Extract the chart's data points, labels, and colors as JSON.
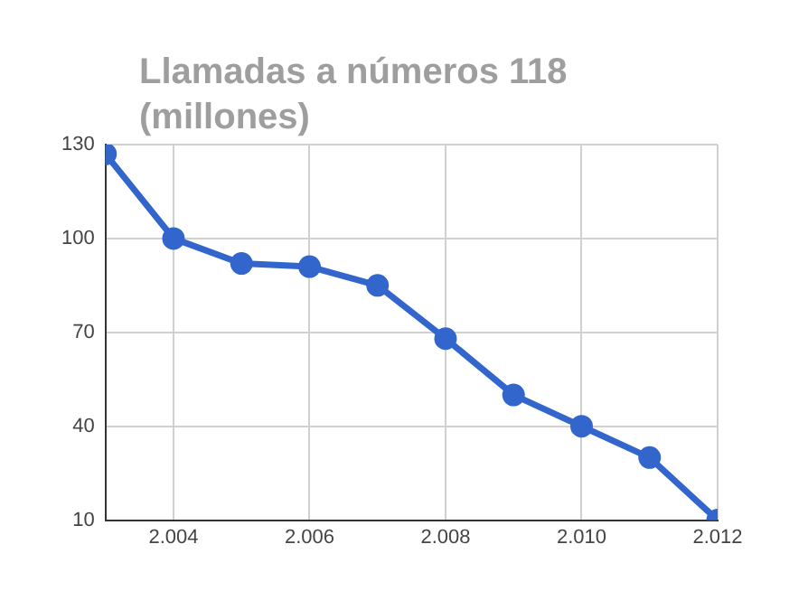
{
  "chart_data": {
    "type": "line",
    "title": "Llamadas a números 118 (millones)",
    "x": [
      2003,
      2004,
      2005,
      2006,
      2007,
      2008,
      2009,
      2010,
      2011,
      2012
    ],
    "series": [
      {
        "color": "#3366cc",
        "values": [
          127,
          100,
          92,
          91,
          85,
          68,
          50,
          40,
          30,
          10
        ]
      }
    ],
    "xlim": [
      2003,
      2012
    ],
    "xticks": [
      {
        "value": 2004,
        "label": "2.004"
      },
      {
        "value": 2006,
        "label": "2.006"
      },
      {
        "value": 2008,
        "label": "2.008"
      },
      {
        "value": 2010,
        "label": "2.010"
      },
      {
        "value": 2012,
        "label": "2.012"
      }
    ],
    "ylim": [
      10,
      130
    ],
    "yticks": [
      10,
      40,
      70,
      100,
      130
    ],
    "grid": true,
    "legend": false,
    "marker": "circle",
    "line_style": "solid"
  }
}
